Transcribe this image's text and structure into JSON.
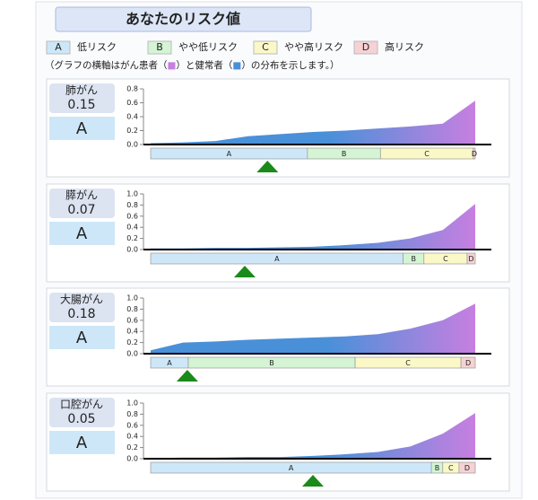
{
  "title": "あなたのリスク値",
  "legend": {
    "items": [
      {
        "key": "A",
        "label": "低リスク",
        "color": "#cde7f8"
      },
      {
        "key": "B",
        "label": "やや低リスク",
        "color": "#d4f4d4"
      },
      {
        "key": "C",
        "label": "やや高リスク",
        "color": "#fbf8c8"
      },
      {
        "key": "D",
        "label": "高リスク",
        "color": "#f6d2d4"
      }
    ],
    "note": {
      "parts": [
        "（グラフの横軸はがん患者（",
        "）と健常者（",
        "）の分布を示します。）"
      ],
      "patient_color": "#c77fe0",
      "healthy_color": "#4a90d9"
    }
  },
  "panels": [
    {
      "name": "肺がん",
      "score": 0.15,
      "grade": "A",
      "chart": {
        "type": "area",
        "x": [
          0,
          10,
          20,
          30,
          40,
          50,
          60,
          70,
          80,
          90,
          100
        ],
        "values": [
          0.02,
          0.03,
          0.05,
          0.12,
          0.15,
          0.18,
          0.2,
          0.23,
          0.26,
          0.3,
          0.63
        ],
        "ylim": [
          0,
          0.8
        ],
        "yticks": [
          {
            "value": 0,
            "label": "0.0"
          },
          {
            "value": 0.2,
            "label": "0.2"
          },
          {
            "value": 0.4,
            "label": "0.4"
          },
          {
            "value": 0.6,
            "label": "0.6"
          },
          {
            "value": 0.8,
            "label": "0.8"
          }
        ],
        "xlim": [
          0,
          100
        ],
        "bands": [
          {
            "label": "A",
            "start": 0,
            "end": 48.3
          },
          {
            "label": "B",
            "start": 48.3,
            "end": 70.8
          },
          {
            "label": "C",
            "start": 70.8,
            "end": 99.4
          },
          {
            "label": "D",
            "start": 99.4,
            "end": 100
          }
        ],
        "marker": 36
      }
    },
    {
      "name": "膵がん",
      "score": 0.07,
      "grade": "A",
      "chart": {
        "type": "area",
        "x": [
          0,
          10,
          20,
          30,
          40,
          50,
          60,
          70,
          80,
          90,
          100
        ],
        "values": [
          0.02,
          0.02,
          0.03,
          0.03,
          0.04,
          0.05,
          0.08,
          0.12,
          0.2,
          0.35,
          0.82
        ],
        "ylim": [
          0,
          1
        ],
        "yticks": [
          {
            "value": 0,
            "label": "0.0"
          },
          {
            "value": 0.2,
            "label": "0.2"
          },
          {
            "value": 0.4,
            "label": "0.4"
          },
          {
            "value": 0.6,
            "label": "0.6"
          },
          {
            "value": 0.8,
            "label": "0.8"
          },
          {
            "value": 1,
            "label": "1.0"
          }
        ],
        "xlim": [
          0,
          100
        ],
        "bands": [
          {
            "label": "A",
            "start": 0,
            "end": 77.8
          },
          {
            "label": "B",
            "start": 77.8,
            "end": 84.2
          },
          {
            "label": "C",
            "start": 84.2,
            "end": 97.5
          },
          {
            "label": "D",
            "start": 97.5,
            "end": 100
          }
        ],
        "marker": 29
      }
    },
    {
      "name": "大腸がん",
      "score": 0.18,
      "grade": "A",
      "chart": {
        "type": "area",
        "x": [
          0,
          10,
          20,
          30,
          40,
          50,
          60,
          70,
          80,
          90,
          100
        ],
        "values": [
          0.06,
          0.2,
          0.22,
          0.25,
          0.27,
          0.29,
          0.31,
          0.35,
          0.45,
          0.6,
          0.9
        ],
        "ylim": [
          0,
          1
        ],
        "yticks": [
          {
            "value": 0,
            "label": "0.0"
          },
          {
            "value": 0.2,
            "label": "0.2"
          },
          {
            "value": 0.4,
            "label": "0.4"
          },
          {
            "value": 0.6,
            "label": "0.6"
          },
          {
            "value": 0.8,
            "label": "0.8"
          },
          {
            "value": 1,
            "label": "1.0"
          }
        ],
        "xlim": [
          0,
          100
        ],
        "bands": [
          {
            "label": "A",
            "start": 0,
            "end": 11.6
          },
          {
            "label": "B",
            "start": 11.6,
            "end": 63
          },
          {
            "label": "C",
            "start": 63,
            "end": 95.6
          },
          {
            "label": "D",
            "start": 95.6,
            "end": 100
          }
        ],
        "marker": 11.3
      }
    },
    {
      "name": "口腔がん",
      "score": 0.05,
      "grade": "A",
      "chart": {
        "type": "area",
        "x": [
          0,
          10,
          20,
          30,
          40,
          50,
          60,
          70,
          80,
          90,
          100
        ],
        "values": [
          0.01,
          0.02,
          0.02,
          0.03,
          0.03,
          0.05,
          0.08,
          0.12,
          0.22,
          0.45,
          0.82
        ],
        "ylim": [
          0,
          1
        ],
        "yticks": [
          {
            "value": 0,
            "label": "0.0"
          },
          {
            "value": 0.2,
            "label": "0.2"
          },
          {
            "value": 0.4,
            "label": "0.4"
          },
          {
            "value": 0.6,
            "label": "0.6"
          },
          {
            "value": 0.8,
            "label": "0.8"
          },
          {
            "value": 1,
            "label": "1.0"
          }
        ],
        "xlim": [
          0,
          100
        ],
        "bands": [
          {
            "label": "A",
            "start": 0,
            "end": 86.5
          },
          {
            "label": "B",
            "start": 86.5,
            "end": 90
          },
          {
            "label": "C",
            "start": 90,
            "end": 95
          },
          {
            "label": "D",
            "start": 95,
            "end": 100
          }
        ],
        "marker": 50
      }
    }
  ]
}
